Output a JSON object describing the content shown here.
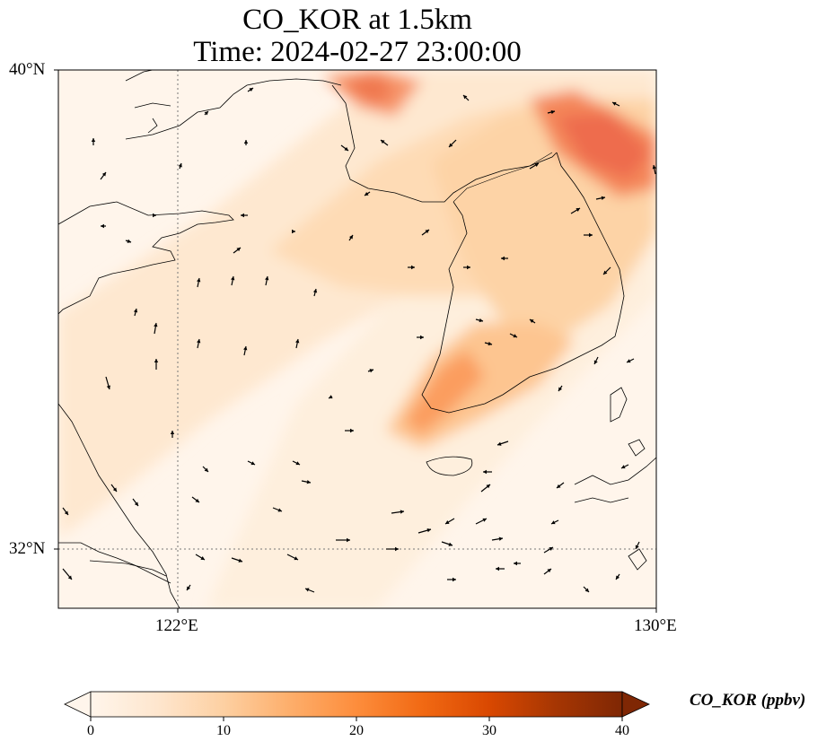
{
  "title_line1": "CO_KOR at 1.5km",
  "title_line2": "Time: 2024-02-27 23:00:00",
  "lat_ticks": [
    "40°N",
    "32°N"
  ],
  "lon_ticks": [
    "122°E",
    "130°E"
  ],
  "colorbar": {
    "label": "CO_KOR (ppbv)",
    "ticks": [
      "0",
      "10",
      "20",
      "30",
      "40"
    ],
    "min": 0,
    "max": 40,
    "extend": "both",
    "colormap": [
      "#fff5eb",
      "#fee6ce",
      "#fdd0a2",
      "#fdae6b",
      "#fd8d3c",
      "#f16913",
      "#d94801",
      "#a63603",
      "#7f2704"
    ]
  },
  "map": {
    "extent_lon": [
      120,
      130
    ],
    "extent_lat": [
      31,
      40
    ],
    "field_units": "ppbv",
    "gridlines": "dotted",
    "wind_vectors": "black arrows"
  }
}
